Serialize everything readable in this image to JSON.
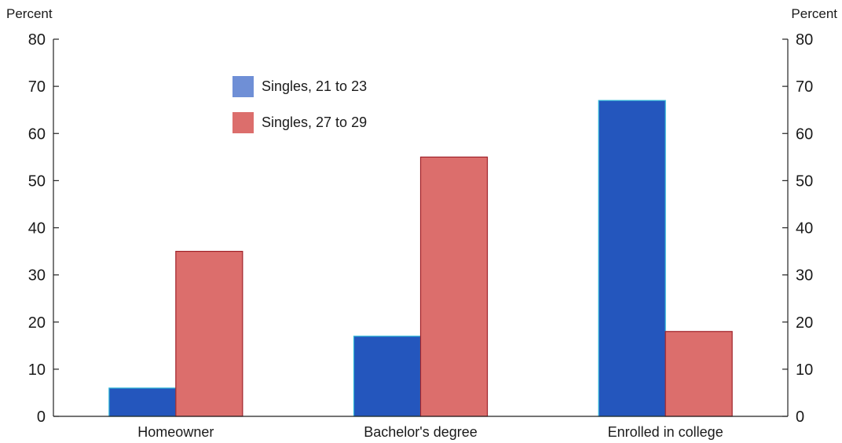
{
  "chart_data": {
    "type": "bar",
    "title": "",
    "left_unit_label": "Percent",
    "right_unit_label": "Percent",
    "categories": [
      "Homeowner",
      "Bachelor's degree",
      "Enrolled in college"
    ],
    "series": [
      {
        "name": "Singles, 21 to 23",
        "values": [
          6,
          17,
          67
        ],
        "color": "#2456bd",
        "edge_color": "#2fb8d8",
        "legend_color": "#6f8fd6"
      },
      {
        "name": "Singles, 27 to 29",
        "values": [
          35,
          55,
          18
        ],
        "color": "#dc6e6c",
        "edge_color": "#a0222a",
        "legend_color": "#dc6e6c"
      }
    ],
    "ylim": [
      0,
      80
    ],
    "yticks": [
      0,
      10,
      20,
      30,
      40,
      50,
      60,
      70,
      80
    ],
    "ytick_labels": [
      "0",
      "10",
      "20",
      "30",
      "40",
      "50",
      "60",
      "70",
      "80"
    ],
    "grid": false,
    "legend_position": "top-left"
  }
}
